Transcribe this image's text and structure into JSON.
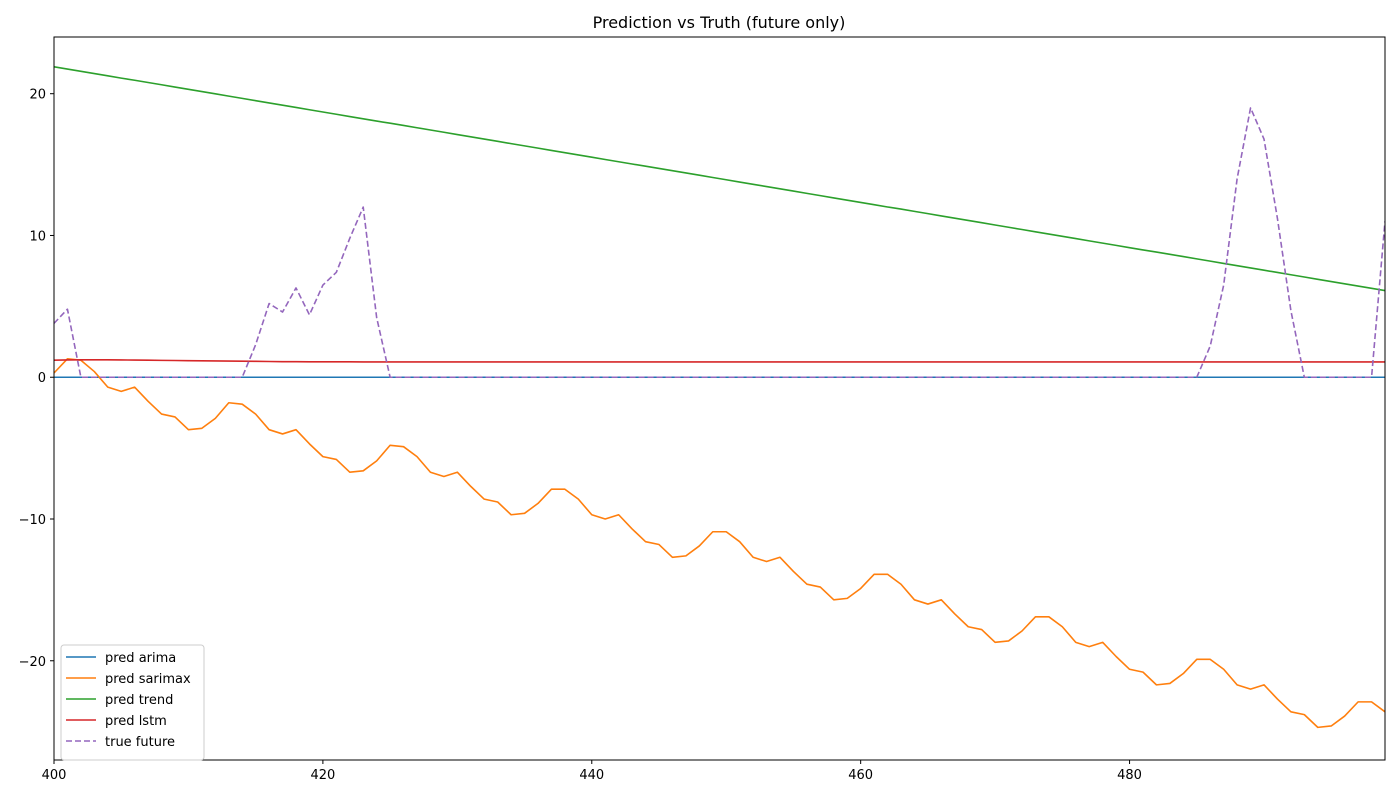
{
  "chart_data": {
    "type": "line",
    "title": "Prediction vs Truth (future only)",
    "xlabel": "",
    "ylabel": "",
    "xlim": [
      400,
      499
    ],
    "ylim": [
      -27,
      24
    ],
    "xticks": [
      400,
      420,
      440,
      460,
      480
    ],
    "yticks": [
      -20,
      -10,
      0,
      10,
      20
    ],
    "ytick_labels": [
      "−20",
      "−10",
      "0",
      "10",
      "20"
    ],
    "legend_position": "lower-left",
    "x": [
      400,
      401,
      402,
      403,
      404,
      405,
      406,
      407,
      408,
      409,
      410,
      411,
      412,
      413,
      414,
      415,
      416,
      417,
      418,
      419,
      420,
      421,
      422,
      423,
      424,
      425,
      426,
      427,
      428,
      429,
      430,
      431,
      432,
      433,
      434,
      435,
      436,
      437,
      438,
      439,
      440,
      441,
      442,
      443,
      444,
      445,
      446,
      447,
      448,
      449,
      450,
      451,
      452,
      453,
      454,
      455,
      456,
      457,
      458,
      459,
      460,
      461,
      462,
      463,
      464,
      465,
      466,
      467,
      468,
      469,
      470,
      471,
      472,
      473,
      474,
      475,
      476,
      477,
      478,
      479,
      480,
      481,
      482,
      483,
      484,
      485,
      486,
      487,
      488,
      489,
      490,
      491,
      492,
      493,
      494,
      495,
      496,
      497,
      498,
      499
    ],
    "series": [
      {
        "name": "pred arima",
        "color": "#1f77b4",
        "dash": "solid",
        "values": [
          0,
          0,
          0,
          0,
          0,
          0,
          0,
          0,
          0,
          0,
          0,
          0,
          0,
          0,
          0,
          0,
          0,
          0,
          0,
          0,
          0,
          0,
          0,
          0,
          0,
          0,
          0,
          0,
          0,
          0,
          0,
          0,
          0,
          0,
          0,
          0,
          0,
          0,
          0,
          0,
          0,
          0,
          0,
          0,
          0,
          0,
          0,
          0,
          0,
          0,
          0,
          0,
          0,
          0,
          0,
          0,
          0,
          0,
          0,
          0,
          0,
          0,
          0,
          0,
          0,
          0,
          0,
          0,
          0,
          0,
          0,
          0,
          0,
          0,
          0,
          0,
          0,
          0,
          0,
          0,
          0,
          0,
          0,
          0,
          0,
          0,
          0,
          0,
          0,
          0,
          0,
          0,
          0,
          0,
          0,
          0,
          0,
          0,
          0,
          0
        ]
      },
      {
        "name": "pred sarimax",
        "color": "#ff7f0e",
        "dash": "solid",
        "values": [
          0.3,
          1.3,
          1.2,
          0.4,
          -0.7,
          -1.0,
          -0.7,
          -1.7,
          -2.6,
          -2.8,
          -3.7,
          -3.6,
          -2.9,
          -1.8,
          -1.9,
          -2.6,
          -3.7,
          -4.0,
          -3.7,
          -4.7,
          -5.6,
          -5.8,
          -6.7,
          -6.6,
          -5.9,
          -4.8,
          -4.9,
          -5.6,
          -6.7,
          -7.0,
          -6.7,
          -7.7,
          -8.6,
          -8.8,
          -9.7,
          -9.6,
          -8.9,
          -7.9,
          -7.9,
          -8.6,
          -9.7,
          -10.0,
          -9.7,
          -10.7,
          -11.6,
          -11.8,
          -12.7,
          -12.6,
          -11.9,
          -10.9,
          -10.9,
          -11.6,
          -12.7,
          -13.0,
          -12.7,
          -13.7,
          -14.6,
          -14.8,
          -15.7,
          -15.6,
          -14.9,
          -13.9,
          -13.9,
          -14.6,
          -15.7,
          -16.0,
          -15.7,
          -16.7,
          -17.6,
          -17.8,
          -18.7,
          -18.6,
          -17.9,
          -16.9,
          -16.9,
          -17.6,
          -18.7,
          -19.0,
          -18.7,
          -19.7,
          -20.6,
          -20.8,
          -21.7,
          -21.6,
          -20.9,
          -19.9,
          -19.9,
          -20.6,
          -21.7,
          -22.0,
          -21.7,
          -22.7,
          -23.6,
          -23.8,
          -24.7,
          -24.6,
          -23.9,
          -22.9,
          -22.9,
          -23.6
        ]
      },
      {
        "name": "pred trend",
        "color": "#2ca02c",
        "dash": "solid",
        "values": [
          21.9,
          21.74,
          21.58,
          21.42,
          21.26,
          21.1,
          20.95,
          20.79,
          20.63,
          20.47,
          20.31,
          20.15,
          19.99,
          19.83,
          19.67,
          19.51,
          19.35,
          19.19,
          19.03,
          18.87,
          18.71,
          18.55,
          18.39,
          18.23,
          18.07,
          17.92,
          17.76,
          17.6,
          17.44,
          17.28,
          17.12,
          16.96,
          16.8,
          16.64,
          16.48,
          16.32,
          16.16,
          16.0,
          15.84,
          15.68,
          15.52,
          15.36,
          15.2,
          15.04,
          14.89,
          14.73,
          14.57,
          14.41,
          14.25,
          14.09,
          13.93,
          13.77,
          13.61,
          13.45,
          13.29,
          13.13,
          12.97,
          12.81,
          12.65,
          12.49,
          12.33,
          12.17,
          12.01,
          11.86,
          11.7,
          11.54,
          11.38,
          11.22,
          11.06,
          10.9,
          10.74,
          10.58,
          10.42,
          10.26,
          10.1,
          9.94,
          9.78,
          9.62,
          9.46,
          9.3,
          9.14,
          8.98,
          8.83,
          8.67,
          8.51,
          8.35,
          8.19,
          8.03,
          7.87,
          7.71,
          7.55,
          7.39,
          7.23,
          7.07,
          6.91,
          6.75,
          6.59,
          6.43,
          6.27,
          6.11
        ]
      },
      {
        "name": "pred lstm",
        "color": "#d62728",
        "dash": "solid",
        "values": [
          1.2,
          1.22,
          1.23,
          1.23,
          1.23,
          1.22,
          1.21,
          1.2,
          1.19,
          1.18,
          1.17,
          1.16,
          1.15,
          1.14,
          1.13,
          1.12,
          1.11,
          1.1,
          1.1,
          1.09,
          1.09,
          1.09,
          1.09,
          1.08,
          1.08,
          1.08,
          1.08,
          1.08,
          1.08,
          1.08,
          1.08,
          1.08,
          1.08,
          1.08,
          1.08,
          1.08,
          1.08,
          1.08,
          1.08,
          1.08,
          1.08,
          1.08,
          1.08,
          1.08,
          1.08,
          1.08,
          1.08,
          1.08,
          1.08,
          1.08,
          1.08,
          1.08,
          1.08,
          1.08,
          1.08,
          1.08,
          1.08,
          1.08,
          1.08,
          1.08,
          1.08,
          1.08,
          1.08,
          1.08,
          1.08,
          1.08,
          1.08,
          1.08,
          1.08,
          1.08,
          1.08,
          1.08,
          1.08,
          1.08,
          1.08,
          1.08,
          1.08,
          1.08,
          1.08,
          1.08,
          1.08,
          1.08,
          1.08,
          1.08,
          1.08,
          1.08,
          1.08,
          1.08,
          1.08,
          1.08,
          1.08,
          1.08,
          1.08,
          1.08,
          1.08,
          1.08,
          1.08,
          1.08,
          1.08,
          1.08
        ]
      },
      {
        "name": "true future",
        "color": "#9467bd",
        "dash": "dashed",
        "values": [
          3.8,
          4.8,
          0,
          0,
          0,
          0,
          0,
          0,
          0,
          0,
          0,
          0,
          0,
          0,
          0,
          2.3,
          5.2,
          4.6,
          6.3,
          4.4,
          6.5,
          7.4,
          9.8,
          12.0,
          4.2,
          0,
          0,
          0,
          0,
          0,
          0,
          0,
          0,
          0,
          0,
          0,
          0,
          0,
          0,
          0,
          0,
          0,
          0,
          0,
          0,
          0,
          0,
          0,
          0,
          0,
          0,
          0,
          0,
          0,
          0,
          0,
          0,
          0,
          0,
          0,
          0,
          0,
          0,
          0,
          0,
          0,
          0,
          0,
          0,
          0,
          0,
          0,
          0,
          0,
          0,
          0,
          0,
          0,
          0,
          0,
          0,
          0,
          0,
          0,
          0,
          0,
          2.2,
          6.5,
          14.0,
          19.0,
          16.8,
          11.2,
          4.7,
          0,
          0,
          0,
          0,
          0,
          0,
          11.0
        ]
      }
    ]
  }
}
